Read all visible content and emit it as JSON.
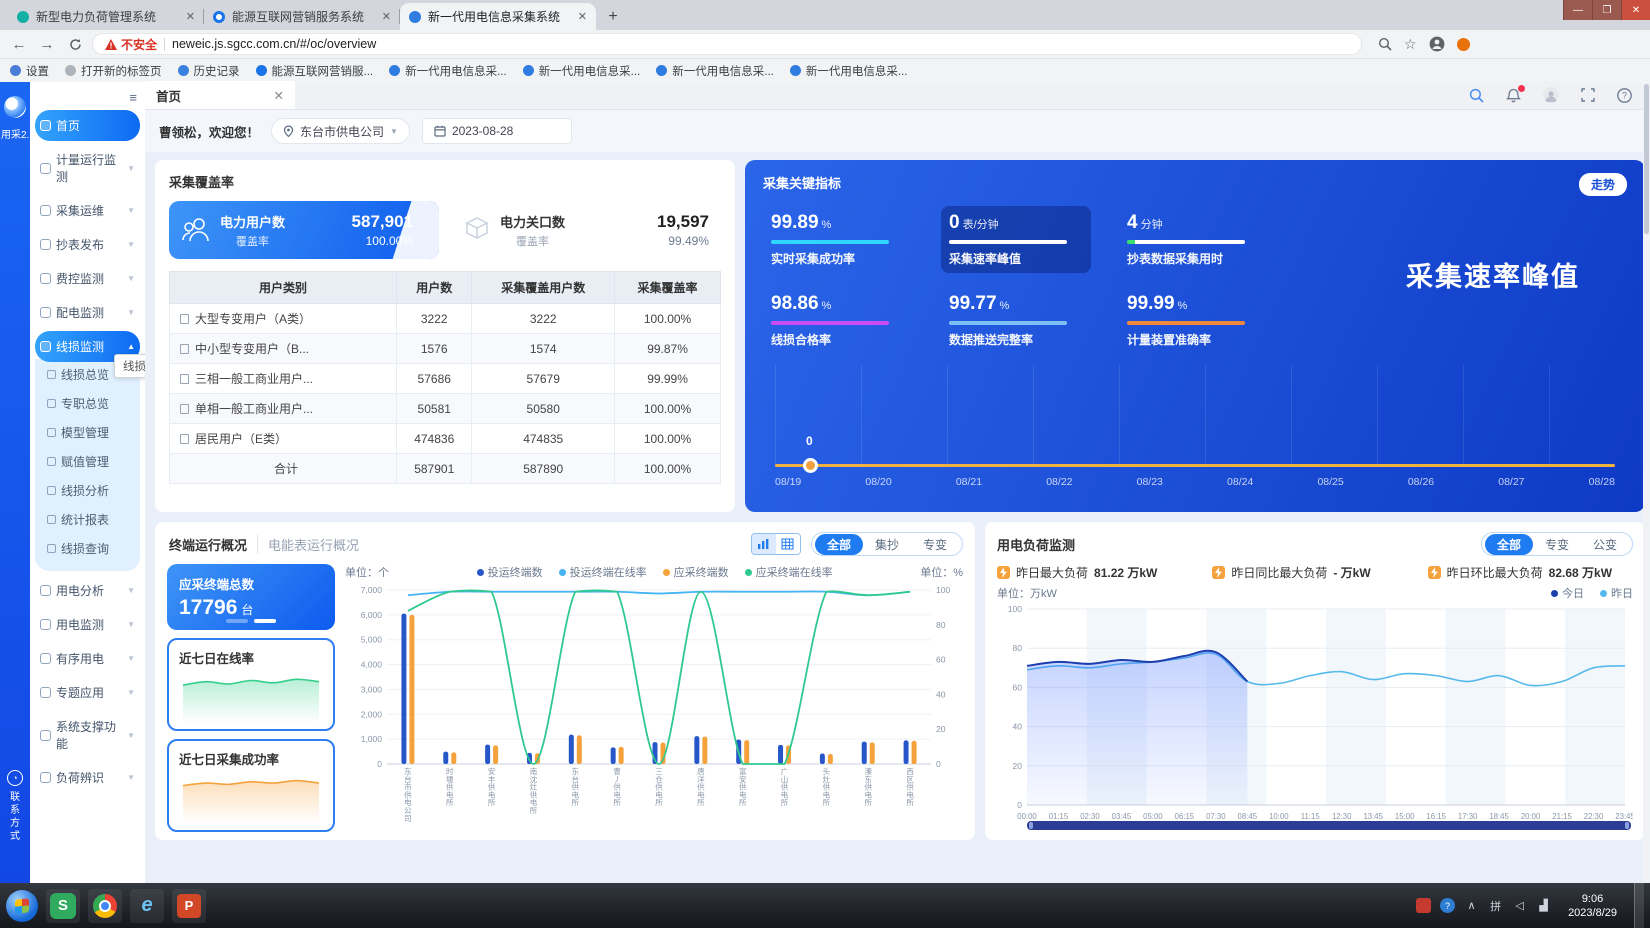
{
  "browser": {
    "tabs": [
      {
        "title": "新型电力负荷管理系统",
        "favicon_color": "#14b0a6",
        "active": false
      },
      {
        "title": "能源互联网营销服务系统",
        "favicon_color": "#1a73e8",
        "active": false
      },
      {
        "title": "新一代用电信息采集系统",
        "favicon_color": "#2f7de1",
        "active": true
      }
    ],
    "security_label": "不安全",
    "url": "neweic.js.sgcc.com.cn/#/oc/overview",
    "bookmarks": [
      {
        "label": "设置",
        "icon": "gear-icon",
        "color": "#4a7dd6"
      },
      {
        "label": "打开新的标签页",
        "icon": "page-icon",
        "color": "#aeb4bc"
      },
      {
        "label": "历史记录",
        "icon": "history-icon",
        "color": "#3b82e0"
      },
      {
        "label": "能源互联网营销服...",
        "icon": "circle-icon",
        "color": "#1a73e8"
      },
      {
        "label": "新一代用电信息采...",
        "icon": "globe-icon",
        "color": "#2f7de1"
      },
      {
        "label": "新一代用电信息采...",
        "icon": "globe-icon",
        "color": "#2f7de1"
      },
      {
        "label": "新一代用电信息采...",
        "icon": "globe-icon",
        "color": "#2f7de1"
      },
      {
        "label": "新一代用电信息采...",
        "icon": "globe-icon",
        "color": "#2f7de1"
      }
    ]
  },
  "rail": {
    "logo_name": "用采2.0",
    "contact": "联系方式"
  },
  "sidebar": {
    "tooltip": "线损监测",
    "items": [
      {
        "label": "首页",
        "active": true
      },
      {
        "label": "计量运行监测",
        "expandable": true
      },
      {
        "label": "采集运维",
        "expandable": true
      },
      {
        "label": "抄表发布",
        "expandable": true
      },
      {
        "label": "费控监测",
        "expandable": true
      },
      {
        "label": "配电监测",
        "expandable": true
      },
      {
        "label": "线损监测",
        "expandable": true,
        "expanded": true,
        "children": [
          "线损总览",
          "专职总览",
          "模型管理",
          "赋值管理",
          "线损分析",
          "统计报表",
          "线损查询"
        ]
      },
      {
        "label": "用电分析",
        "expandable": true
      },
      {
        "label": "用电监测",
        "expandable": true
      },
      {
        "label": "有序用电",
        "expandable": true
      },
      {
        "label": "专题应用",
        "expandable": true
      },
      {
        "label": "系统支撑功能",
        "expandable": true
      },
      {
        "label": "负荷辨识",
        "expandable": true
      }
    ]
  },
  "header": {
    "page_tab": "首页",
    "greeting": "曹领松，欢迎您！",
    "org": "东台市供电公司",
    "date": "2023-08-28"
  },
  "coverage": {
    "title": "采集覆盖率",
    "tiles": [
      {
        "name": "电力用户数",
        "value": "587,901",
        "rate_label": "覆盖率",
        "rate": "100.00%"
      },
      {
        "name": "电力关口数",
        "value": "19,597",
        "rate_label": "覆盖率",
        "rate": "99.49%"
      }
    ],
    "table": {
      "headers": [
        "用户类别",
        "用户数",
        "采集覆盖用户数",
        "采集覆盖率"
      ],
      "rows": [
        [
          "大型专变用户（A类）",
          "3222",
          "3222",
          "100.00%"
        ],
        [
          "中小型专变用户（B...",
          "1576",
          "1574",
          "99.87%"
        ],
        [
          "三相一般工商业用户...",
          "57686",
          "57679",
          "99.99%"
        ],
        [
          "单相一般工商业用户...",
          "50581",
          "50580",
          "100.00%"
        ],
        [
          "居民用户（E类）",
          "474836",
          "474835",
          "100.00%"
        ],
        [
          "合计",
          "587901",
          "587890",
          "100.00%"
        ]
      ]
    }
  },
  "indicators": {
    "title": "采集关键指标",
    "trend_button": "走势",
    "big_label": "采集速率峰值",
    "metrics": [
      {
        "value": "99.89",
        "unit": "%",
        "label": "实时采集成功率",
        "bars": [
          {
            "color": "#2fd6ff",
            "pct": 100
          }
        ],
        "highlight": false
      },
      {
        "value": "0",
        "unit": "表/分钟",
        "label": "采集速率峰值",
        "bars": [
          {
            "color": "#ffffff",
            "pct": 100
          }
        ],
        "highlight": true
      },
      {
        "value": "4",
        "unit": "分钟",
        "label": "抄表数据采集用时",
        "bars": [
          {
            "color": "#3be06f",
            "pct": 7
          },
          {
            "color": "#ffffff",
            "pct": 93
          }
        ],
        "highlight": false
      },
      {
        "value": "98.86",
        "unit": "%",
        "label": "线损合格率",
        "bars": [
          {
            "color": "#cb4bf5",
            "pct": 100
          }
        ],
        "highlight": false
      },
      {
        "value": "99.77",
        "unit": "%",
        "label": "数据推送完整率",
        "bars": [
          {
            "color": "#7cc0f8",
            "pct": 100
          }
        ],
        "highlight": false
      },
      {
        "value": "99.99",
        "unit": "%",
        "label": "计量装置准确率",
        "bars": [
          {
            "color": "#f2883c",
            "pct": 100
          }
        ],
        "highlight": false
      }
    ],
    "timeline": {
      "point_label": "0",
      "dates": [
        "08/19",
        "08/20",
        "08/21",
        "08/22",
        "08/23",
        "08/24",
        "08/25",
        "08/26",
        "08/27",
        "08/28"
      ]
    }
  },
  "terminal": {
    "tabs": [
      {
        "label": "终端运行概况",
        "active": true
      },
      {
        "label": "电能表运行概况",
        "active": false
      }
    ],
    "filters": [
      "全部",
      "集抄",
      "专变"
    ],
    "active_filter": "全部",
    "summary": {
      "label": "应采终端总数",
      "value": "17796",
      "unit": "台"
    },
    "mini_cards": [
      {
        "title": "近七日在线率",
        "color": "#35cf8d",
        "trend": [
          99.0,
          99.3,
          99.1,
          99.4,
          99.2,
          99.5,
          99.3
        ]
      },
      {
        "title": "近七日采集成功率",
        "color": "#f6a23c",
        "trend": [
          99.0,
          99.2,
          99.1,
          99.3,
          99.2,
          99.4,
          99.2
        ]
      }
    ],
    "chart_data": {
      "type": "bar",
      "unit_left": "单位：个",
      "unit_right": "单位：%",
      "ylim_left": [
        0,
        7000
      ],
      "ylim_right": [
        0,
        100
      ],
      "legend": [
        {
          "name": "投运终端数",
          "color": "#2656c8"
        },
        {
          "name": "投运终端在线率",
          "color": "#45b4f5"
        },
        {
          "name": "应采终端数",
          "color": "#f6a23c"
        },
        {
          "name": "应采终端在线率",
          "color": "#2ec98e"
        }
      ],
      "categories": [
        "东台市供电公司",
        "时堰供电所",
        "安丰供电所",
        "南沈灶供电所",
        "东台供电所",
        "曹丿供电所",
        "三仓供电所",
        "唐洋供电所",
        "富安供电所",
        "广山供电所",
        "头灶供电所",
        "溱东供电所",
        "西区供电所"
      ],
      "series": [
        {
          "name": "投运终端数",
          "type": "bar",
          "axis": "left",
          "color": "#2656c8",
          "values": [
            6050,
            500,
            780,
            450,
            1180,
            670,
            880,
            1120,
            980,
            770,
            420,
            900,
            950
          ]
        },
        {
          "name": "应采终端数",
          "type": "bar",
          "axis": "left",
          "color": "#f6a23c",
          "values": [
            6000,
            470,
            750,
            430,
            1150,
            690,
            860,
            1100,
            960,
            750,
            400,
            870,
            930
          ]
        },
        {
          "name": "投运终端在线率",
          "type": "line",
          "axis": "right",
          "color": "#45b4f5",
          "values": [
            97,
            99,
            99,
            99,
            99,
            99,
            98,
            99,
            99,
            99,
            99,
            97,
            99
          ]
        },
        {
          "name": "应采终端在线率",
          "type": "line",
          "axis": "right",
          "color": "#2ec98e",
          "values": [
            88,
            99,
            99,
            0,
            99,
            99,
            0,
            99,
            0,
            0,
            99,
            97,
            99
          ]
        }
      ]
    }
  },
  "load": {
    "title": "用电负荷监测",
    "filters": [
      "全部",
      "专变",
      "公变"
    ],
    "active_filter": "全部",
    "stats": [
      {
        "label": "昨日最大负荷",
        "value": "81.22 万kW"
      },
      {
        "label": "昨日同比最大负荷",
        "value": "- 万kW"
      },
      {
        "label": "昨日环比最大负荷",
        "value": "82.68 万kW"
      }
    ],
    "unit": "单位：万kW",
    "chart_data": {
      "type": "line",
      "ylim": [
        0,
        100
      ],
      "legend": [
        {
          "name": "今日",
          "color": "#1d3fae"
        },
        {
          "name": "昨日",
          "color": "#56b9ec"
        }
      ],
      "x": [
        "00:00",
        "01:15",
        "02:30",
        "03:45",
        "05:00",
        "06:15",
        "07:30",
        "08:45",
        "10:00",
        "11:15",
        "12:30",
        "13:45",
        "15:00",
        "16:15",
        "17:30",
        "18:45",
        "20:00",
        "21:15",
        "22:30",
        "23:45"
      ],
      "series": [
        {
          "name": "今日",
          "color": "#1d3fae",
          "fill": true,
          "values": [
            71,
            73,
            72,
            74,
            73,
            76,
            78,
            63
          ]
        },
        {
          "name": "昨日",
          "color": "#56b9ec",
          "fill": false,
          "values": [
            69,
            71,
            70,
            72,
            73,
            75,
            77,
            63,
            62,
            66,
            68,
            64,
            67,
            66,
            63,
            66,
            61,
            63,
            70,
            71
          ]
        }
      ]
    }
  },
  "taskbar": {
    "time": "9:06",
    "date": "2023/8/29"
  }
}
